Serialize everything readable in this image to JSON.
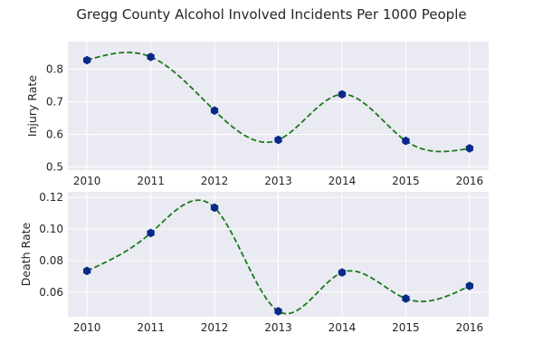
{
  "figure": {
    "title": "Gregg County Alcohol Involved Incidents Per 1000 People"
  },
  "chart_data": [
    {
      "type": "line",
      "title": "",
      "xlabel": "",
      "ylabel": "Injury Rate",
      "x": [
        2010,
        2011,
        2012,
        2013,
        2014,
        2015,
        2016
      ],
      "xticks": [
        "2010",
        "2011",
        "2012",
        "2013",
        "2014",
        "2015",
        "2016"
      ],
      "xlim": [
        2009.7,
        2016.3
      ],
      "ylim": [
        0.49,
        0.885
      ],
      "yticks": [
        0.5,
        0.6,
        0.7,
        0.8
      ],
      "ytick_labels": [
        "0.5",
        "0.6",
        "0.7",
        "0.8"
      ],
      "grid": true,
      "series": [
        {
          "values": [
            0.828,
            0.838,
            0.673,
            0.583,
            0.723,
            0.58,
            0.557
          ],
          "marker": "hexagon",
          "marker_color": "#0a2a8a",
          "line": "dashed-smooth",
          "line_color": "#1a7a1a"
        }
      ]
    },
    {
      "type": "line",
      "title": "",
      "xlabel": "",
      "ylabel": "Death Rate",
      "x": [
        2010,
        2011,
        2012,
        2013,
        2014,
        2015,
        2016
      ],
      "xticks": [
        "2010",
        "2011",
        "2012",
        "2013",
        "2014",
        "2015",
        "2016"
      ],
      "xlim": [
        2009.7,
        2016.3
      ],
      "ylim": [
        0.0445,
        0.1235
      ],
      "yticks": [
        0.06,
        0.08,
        0.1,
        0.12
      ],
      "ytick_labels": [
        "0.06",
        "0.08",
        "0.10",
        "0.12"
      ],
      "grid": true,
      "series": [
        {
          "values": [
            0.0735,
            0.0975,
            0.1135,
            0.048,
            0.0725,
            0.056,
            0.064
          ],
          "marker": "hexagon",
          "marker_color": "#0a2a8a",
          "line": "dashed-smooth",
          "line_color": "#1a7a1a"
        }
      ]
    }
  ],
  "style": {
    "axes_background": "#eaeaf2",
    "grid_color": "#ffffff",
    "text_color": "#262626"
  }
}
